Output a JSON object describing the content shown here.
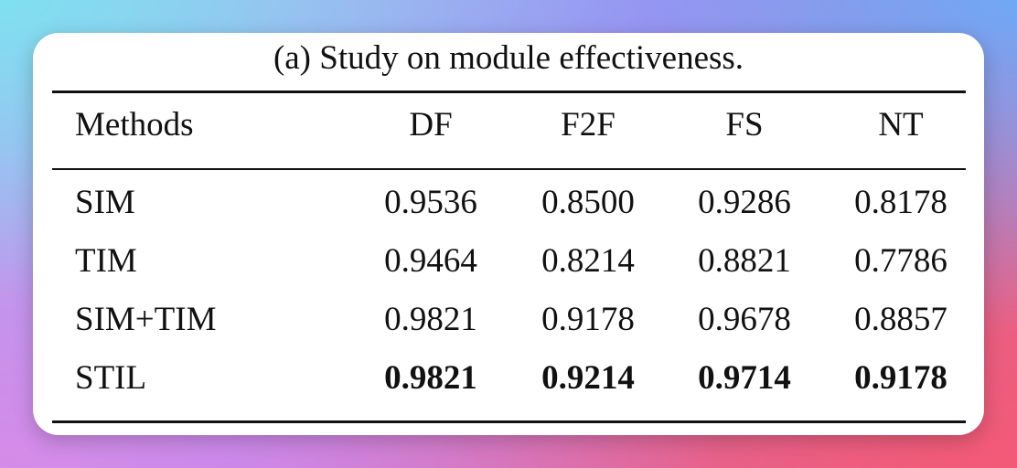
{
  "caption": "(a) Study on module effectiveness.",
  "table": {
    "headers": [
      "Methods",
      "DF",
      "F2F",
      "FS",
      "NT"
    ],
    "rows": [
      {
        "method": "SIM",
        "values": [
          "0.9536",
          "0.8500",
          "0.9286",
          "0.8178"
        ]
      },
      {
        "method": "TIM",
        "values": [
          "0.9464",
          "0.8214",
          "0.8821",
          "0.7786"
        ]
      },
      {
        "method": "SIM+TIM",
        "values": [
          "0.9821",
          "0.9178",
          "0.9678",
          "0.8857"
        ]
      },
      {
        "method": "STIL",
        "values": [
          "0.9821",
          "0.9214",
          "0.9714",
          "0.9178"
        ]
      }
    ],
    "bold_row": "STIL"
  }
}
